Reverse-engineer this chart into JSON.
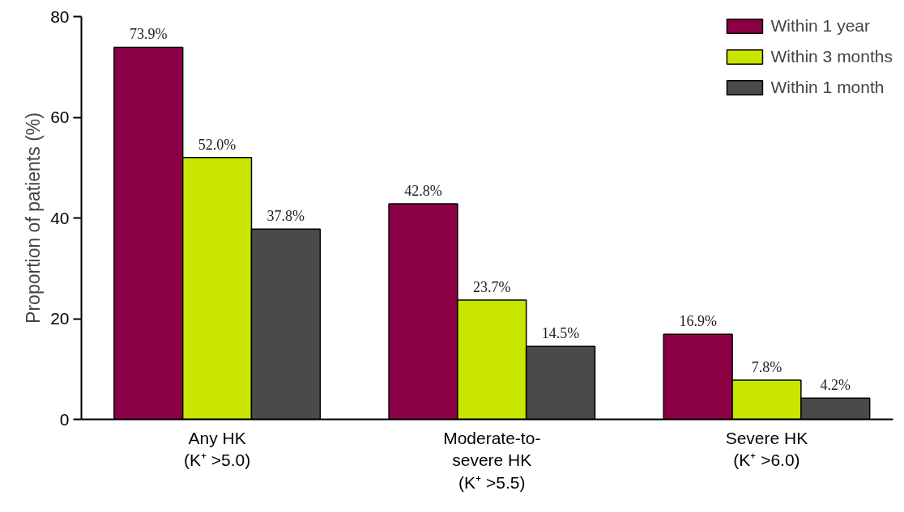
{
  "chart_data": {
    "type": "bar",
    "ylabel": "Proportion of patients (%)",
    "categories": [
      "Any HK\n(K⁺ >5.0)",
      "Moderate-to-\nsevere HK\n(K⁺ >5.5)",
      "Severe HK\n(K⁺ >6.0)"
    ],
    "series": [
      {
        "name": "Within 1 year",
        "color": "#8b0045",
        "values": [
          73.9,
          42.8,
          16.9
        ],
        "value_labels": [
          "73.9%",
          "42.8%",
          "16.9%"
        ]
      },
      {
        "name": "Within 3 months",
        "color": "#c8e600",
        "values": [
          52.0,
          23.7,
          7.8
        ],
        "value_labels": [
          "52.0%",
          "23.7%",
          "7.8%"
        ]
      },
      {
        "name": "Within 1 month",
        "color": "#484b4a",
        "values": [
          37.8,
          14.5,
          4.2
        ],
        "value_labels": [
          "37.8%",
          "14.5%",
          "4.2%"
        ]
      }
    ],
    "ylim": [
      0,
      80
    ],
    "yticks": [
      0,
      20,
      40,
      60,
      80
    ],
    "grid": false,
    "legend": "top right"
  }
}
